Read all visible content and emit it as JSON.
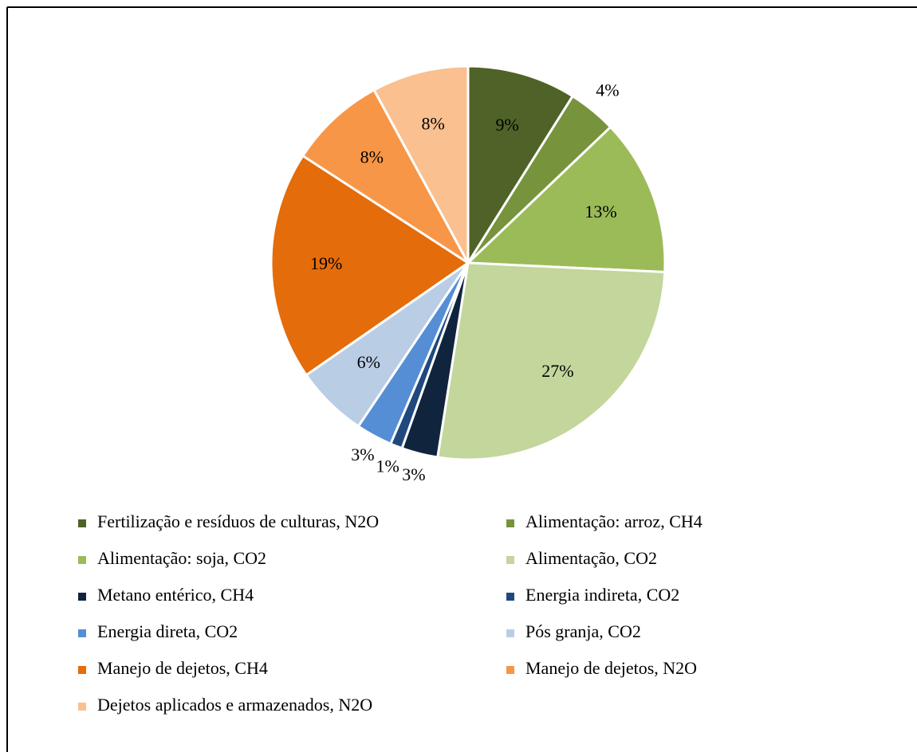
{
  "chart_data": {
    "type": "pie",
    "categories": [
      "Fertilização e resíduos de culturas, N2O",
      "Alimentação: arroz, CH4",
      "Alimentação: soja, CO2",
      "Alimentação, CO2",
      "Metano entérico, CH4",
      "Energia indireta, CO2",
      "Energia direta, CO2",
      "Pós granja, CO2",
      "Manejo de dejetos, CH4",
      "Manejo de dejetos, N2O",
      "Dejetos aplicados e armazenados, N2O"
    ],
    "values": [
      9,
      4,
      13,
      27,
      3,
      1,
      3,
      6,
      19,
      8,
      8
    ],
    "value_labels": [
      "9%",
      "4%",
      "13%",
      "27%",
      "3%",
      "1%",
      "3%",
      "6%",
      "19%",
      "8%",
      "8%"
    ],
    "colors": [
      "#4f6228",
      "#77933c",
      "#9bbb59",
      "#c3d69b",
      "#10243e",
      "#1f497d",
      "#558ed5",
      "#b9cde5",
      "#e46c0a",
      "#f79646",
      "#fac090"
    ],
    "legend": "bottom"
  }
}
